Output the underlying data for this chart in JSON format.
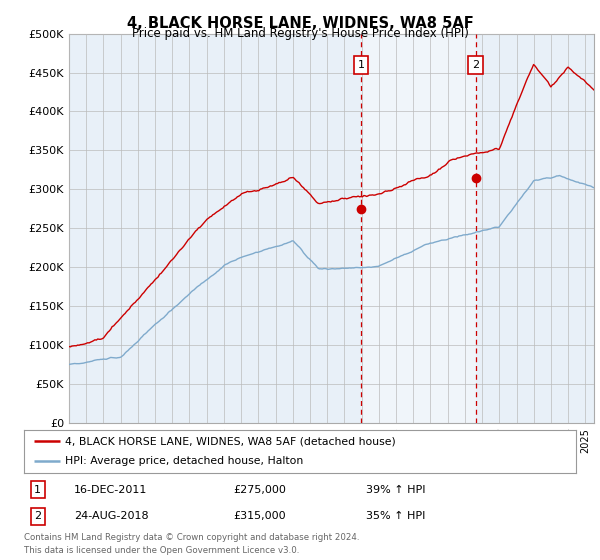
{
  "title": "4, BLACK HORSE LANE, WIDNES, WA8 5AF",
  "subtitle": "Price paid vs. HM Land Registry's House Price Index (HPI)",
  "legend_line1": "4, BLACK HORSE LANE, WIDNES, WA8 5AF (detached house)",
  "legend_line2": "HPI: Average price, detached house, Halton",
  "annotation1_label": "1",
  "annotation1_date": "16-DEC-2011",
  "annotation1_price": "£275,000",
  "annotation1_hpi": "39% ↑ HPI",
  "annotation1_year": 2011.96,
  "annotation1_value": 275000,
  "annotation2_label": "2",
  "annotation2_date": "24-AUG-2018",
  "annotation2_price": "£315,000",
  "annotation2_hpi": "35% ↑ HPI",
  "annotation2_year": 2018.64,
  "annotation2_value": 315000,
  "footer": "Contains HM Land Registry data © Crown copyright and database right 2024.\nThis data is licensed under the Open Government Licence v3.0.",
  "red_color": "#cc0000",
  "blue_color": "#7faacc",
  "highlight_color": "#ddeeff",
  "background_color": "#e8f0f8",
  "vline_color": "#cc0000",
  "annotation_box_color": "#cc0000",
  "grid_color": "#bbbbbb",
  "plot_bg": "#e8f0f8",
  "ylim": [
    0,
    500000
  ],
  "yticks": [
    0,
    50000,
    100000,
    150000,
    200000,
    250000,
    300000,
    350000,
    400000,
    450000,
    500000
  ],
  "xstart": 1995.0,
  "xend": 2025.5
}
